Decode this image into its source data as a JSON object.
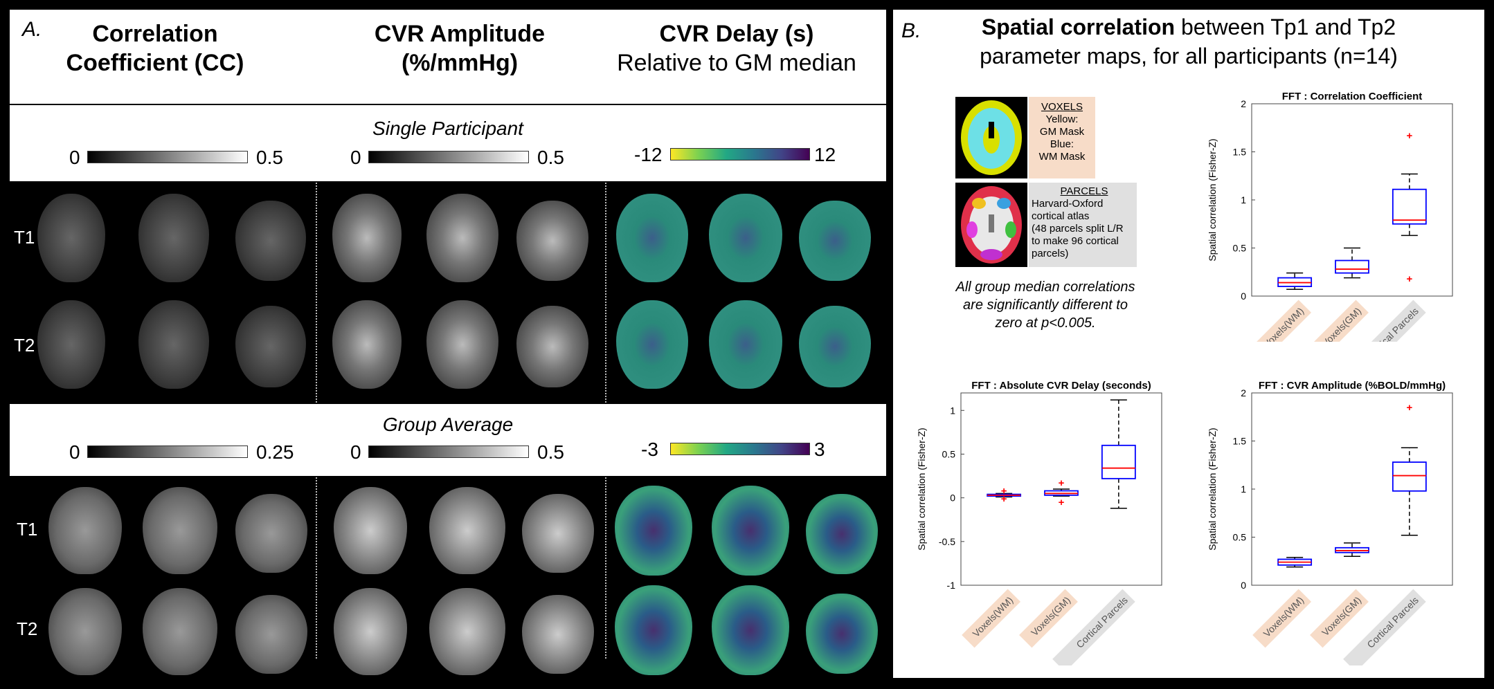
{
  "panel_a": {
    "letter": "A.",
    "col1_title_line1": "Correlation",
    "col1_title_line2": "Coefficient (CC)",
    "col2_title_line1": "CVR Amplitude",
    "col2_title_line2": "(%/mmHg)",
    "col3_title_line1": "CVR Delay (s)",
    "col3_title_line2": "Relative to GM median",
    "single_label": "Single Participant",
    "group_label": "Group Average",
    "row_t1": "T1",
    "row_t2": "T2",
    "single_scales": {
      "cc_min": "0",
      "cc_max": "0.5",
      "amp_min": "0",
      "amp_max": "0.5",
      "delay_min": "-12",
      "delay_max": "12"
    },
    "group_scales": {
      "cc_min": "0",
      "cc_max": "0.25",
      "amp_min": "0",
      "amp_max": "0.5",
      "delay_min": "-3",
      "delay_max": "3"
    }
  },
  "panel_b": {
    "letter": "B.",
    "title_bold": "Spatial correlation",
    "title_rest": " between Tp1 and Tp2",
    "title_line2": "parameter maps, for all participants (n=14)",
    "voxels_legend": {
      "heading": "VOXELS",
      "line1": "Yellow:",
      "line2": "GM Mask",
      "line3": "Blue:",
      "line4": "WM Mask"
    },
    "parcels_legend": {
      "heading": "PARCELS",
      "line1": "Harvard-Oxford",
      "line2": "cortical atlas",
      "line3": "(48 parcels split L/R",
      "line4": "to make 96 cortical",
      "line5": "parcels)"
    },
    "note_line1": "All group median correlations",
    "note_line2": "are significantly different to",
    "note_line3": "zero at p<0.005."
  },
  "colors": {
    "box": "#0000ff",
    "median": "#ff0000",
    "outlier": "#ff0000",
    "voxel_tag": "#f7dcc8",
    "parcel_tag": "#e0e0e0"
  },
  "chart_data": [
    {
      "type": "box",
      "title": "FFT  : Correlation Coefficient",
      "ylabel": "Spatial correlation (Fisher-Z)",
      "categories": [
        "Voxels(WM)",
        "Voxels(GM)",
        "Cortical Parcels"
      ],
      "ylim": [
        0,
        2
      ],
      "yticks": [
        "0",
        "0.5",
        "1",
        "1.5",
        "2"
      ],
      "boxes": [
        {
          "min": 0.07,
          "q1": 0.1,
          "median": 0.14,
          "q3": 0.19,
          "max": 0.24,
          "outliers": []
        },
        {
          "min": 0.19,
          "q1": 0.24,
          "median": 0.28,
          "q3": 0.37,
          "max": 0.5,
          "outliers": []
        },
        {
          "min": 0.63,
          "q1": 0.75,
          "median": 0.79,
          "q3": 1.11,
          "max": 1.27,
          "outliers": [
            1.67,
            0.18
          ]
        }
      ]
    },
    {
      "type": "box",
      "title": "FFT  : Absolute CVR Delay (seconds)",
      "ylabel": "Spatial correlation (Fisher-Z)",
      "categories": [
        "Voxels(WM)",
        "Voxels(GM)",
        "Cortical Parcels"
      ],
      "ylim": [
        -1,
        1.2
      ],
      "yticks": [
        "-1",
        "-0.5",
        "0",
        "0.5",
        "1"
      ],
      "boxes": [
        {
          "min": 0.01,
          "q1": 0.02,
          "median": 0.03,
          "q3": 0.04,
          "max": 0.05,
          "outliers": [
            0.08,
            -0.01
          ]
        },
        {
          "min": 0.02,
          "q1": 0.03,
          "median": 0.05,
          "q3": 0.08,
          "max": 0.1,
          "outliers": [
            0.17,
            -0.05
          ]
        },
        {
          "min": -0.12,
          "q1": 0.22,
          "median": 0.34,
          "q3": 0.6,
          "max": 1.12,
          "outliers": []
        }
      ]
    },
    {
      "type": "box",
      "title": "FFT  : CVR Amplitude (%BOLD/mmHg)",
      "ylabel": "Spatial correlation (Fisher-Z)",
      "categories": [
        "Voxels(WM)",
        "Voxels(GM)",
        "Cortical Parcels"
      ],
      "ylim": [
        0,
        2
      ],
      "yticks": [
        "0",
        "0.5",
        "1",
        "1.5",
        "2"
      ],
      "boxes": [
        {
          "min": 0.19,
          "q1": 0.21,
          "median": 0.24,
          "q3": 0.27,
          "max": 0.29,
          "outliers": []
        },
        {
          "min": 0.3,
          "q1": 0.34,
          "median": 0.36,
          "q3": 0.39,
          "max": 0.44,
          "outliers": []
        },
        {
          "min": 0.52,
          "q1": 0.98,
          "median": 1.14,
          "q3": 1.28,
          "max": 1.43,
          "outliers": [
            1.85
          ]
        }
      ]
    }
  ]
}
